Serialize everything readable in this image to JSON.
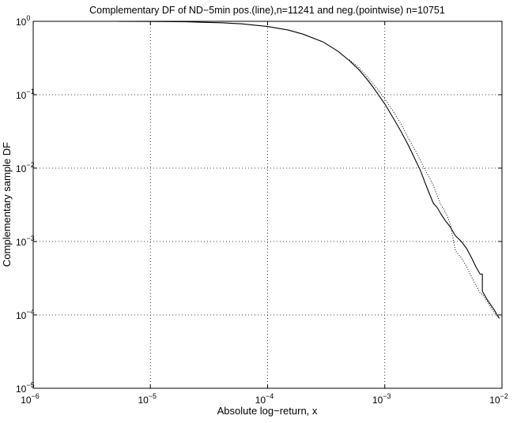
{
  "chart_data": {
    "type": "line",
    "title": "Complementary DF of ND−5min pos.(line),n=11241 and neg.(pointwise) n=10751",
    "xlabel": "Absolute log−return, x",
    "ylabel": "Complementary sample DF",
    "xscale": "log",
    "yscale": "log",
    "xlim": [
      1e-06,
      0.01
    ],
    "ylim": [
      1e-05,
      1
    ],
    "grid": true,
    "x_ticks": [
      {
        "value": 1e-06,
        "base": "10",
        "exp": "−6"
      },
      {
        "value": 1e-05,
        "base": "10",
        "exp": "−5"
      },
      {
        "value": 0.0001,
        "base": "10",
        "exp": "−4"
      },
      {
        "value": 0.001,
        "base": "10",
        "exp": "−3"
      },
      {
        "value": 0.01,
        "base": "10",
        "exp": "−2"
      }
    ],
    "y_ticks": [
      {
        "value": 1e-05,
        "base": "10",
        "exp": "−5"
      },
      {
        "value": 0.0001,
        "base": "10",
        "exp": "−4"
      },
      {
        "value": 0.001,
        "base": "10",
        "exp": "−3"
      },
      {
        "value": 0.01,
        "base": "10",
        "exp": "−2"
      },
      {
        "value": 0.1,
        "base": "10",
        "exp": "−1"
      },
      {
        "value": 1,
        "base": "10",
        "exp": "0"
      }
    ],
    "series": [
      {
        "style": "solid",
        "color": "#000000",
        "points": [
          [
            5.4e-06,
            0.999
          ],
          [
            1e-05,
            0.995
          ],
          [
            2e-05,
            0.985
          ],
          [
            4e-05,
            0.955
          ],
          [
            6e-05,
            0.925
          ],
          [
            0.0001,
            0.85
          ],
          [
            0.00015,
            0.76
          ],
          [
            0.0002,
            0.67
          ],
          [
            0.0003,
            0.52
          ],
          [
            0.0004,
            0.39
          ],
          [
            0.0005,
            0.29
          ],
          [
            0.0006,
            0.22
          ],
          [
            0.0007,
            0.165
          ],
          [
            0.0008,
            0.125
          ],
          [
            0.0009,
            0.095
          ],
          [
            0.001,
            0.075
          ],
          [
            0.0012,
            0.046
          ],
          [
            0.0014,
            0.03
          ],
          [
            0.0016,
            0.02
          ],
          [
            0.0018,
            0.0135
          ],
          [
            0.002,
            0.0095
          ],
          [
            0.0021,
            0.0078
          ],
          [
            0.0022,
            0.0064
          ],
          [
            0.0024,
            0.0045
          ],
          [
            0.0026,
            0.0033
          ],
          [
            0.0028,
            0.0029
          ],
          [
            0.003,
            0.0024
          ],
          [
            0.0033,
            0.0019
          ],
          [
            0.0036,
            0.0016
          ],
          [
            0.004,
            0.0012
          ],
          [
            0.0045,
            0.001
          ],
          [
            0.005,
            0.0008
          ],
          [
            0.0055,
            0.0006
          ],
          [
            0.006,
            0.00045
          ],
          [
            0.0065,
            0.00036
          ],
          [
            0.0068,
            0.00036
          ],
          [
            0.0068,
            0.00021
          ],
          [
            0.0075,
            0.00016
          ],
          [
            0.0085,
            0.00012
          ],
          [
            0.0095,
            8.95e-05
          ]
        ]
      },
      {
        "style": "dotted",
        "color": "#000000",
        "points": [
          [
            0.0005,
            0.3
          ],
          [
            0.0006,
            0.235
          ],
          [
            0.0007,
            0.18
          ],
          [
            0.0008,
            0.14
          ],
          [
            0.0009,
            0.11
          ],
          [
            0.001,
            0.088
          ],
          [
            0.0012,
            0.057
          ],
          [
            0.0014,
            0.038
          ],
          [
            0.0016,
            0.025
          ],
          [
            0.0018,
            0.018
          ],
          [
            0.002,
            0.013
          ],
          [
            0.0022,
            0.0095
          ],
          [
            0.0024,
            0.0075
          ],
          [
            0.0026,
            0.0058
          ],
          [
            0.0028,
            0.0042
          ],
          [
            0.003,
            0.0032
          ],
          [
            0.0033,
            0.0025
          ],
          [
            0.0036,
            0.0018
          ],
          [
            0.004,
            0.00075
          ],
          [
            0.0045,
            0.0006
          ],
          [
            0.005,
            0.00045
          ],
          [
            0.0055,
            0.00033
          ],
          [
            0.006,
            0.00025
          ],
          [
            0.0065,
            0.0002
          ],
          [
            0.0068,
            0.00019
          ],
          [
            0.0075,
            0.00015
          ],
          [
            0.0085,
            0.00011
          ],
          [
            0.0095,
            8.95e-05
          ]
        ]
      }
    ]
  }
}
